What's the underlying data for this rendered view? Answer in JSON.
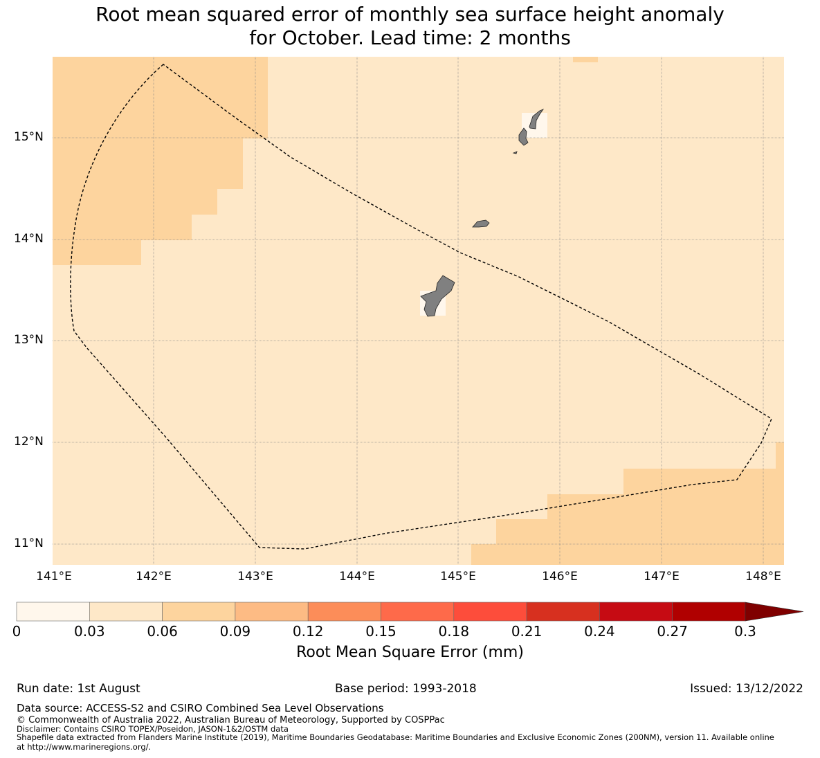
{
  "title": {
    "line1": "Root mean squared error of monthly sea surface height anomaly",
    "line2": "for October. Lead time: 2 months"
  },
  "map": {
    "lat_ticks": [
      "15°N",
      "14°N",
      "13°N",
      "12°N",
      "11°N"
    ],
    "lon_ticks": [
      "141°E",
      "142°E",
      "143°E",
      "144°E",
      "145°E",
      "146°E",
      "147°E",
      "148°E"
    ],
    "colors": {
      "ocean_low": "#fee8c8",
      "ocean_mid": "#fdd49e",
      "land": "#808080",
      "boundary": "#000000",
      "gridline": "#888888"
    }
  },
  "colorbar": {
    "ticks": [
      "0",
      "0.03",
      "0.06",
      "0.09",
      "0.12",
      "0.15",
      "0.18",
      "0.21",
      "0.24",
      "0.27",
      "0.3"
    ],
    "colors": [
      "#fff7ec",
      "#fee8c8",
      "#fdd49e",
      "#fdbb84",
      "#fc8d59",
      "#fe6a4a",
      "#fd4d3b",
      "#d7301f",
      "#c60b13",
      "#b00000",
      "#7f0000"
    ],
    "label": "Root Mean Square Error (mm)"
  },
  "info": {
    "run_date": "Run date: 1st August",
    "base_period": "Base period: 1993-2018",
    "issued": "Issued: 13/12/2022"
  },
  "footer": {
    "source": "Data source: ACCESS-S2 and CSIRO Combined Sea Level Observations",
    "copyright": "© Commonwealth of Australia 2022, Australian Bureau of Meteorology, Supported by COSPPac",
    "disclaimer": "Disclaimer: Contains CSIRO TOPEX/Poseidon, JASON-1&2/OSTM data",
    "shapefile": "Shapefile data extracted from Flanders Marine Institute (2019), Maritime Boundaries Geodatabase: Maritime Boundaries and Exclusive Economic Zones (200NM), version 11. Available online",
    "url": "at http://www.marineregions.org/."
  }
}
